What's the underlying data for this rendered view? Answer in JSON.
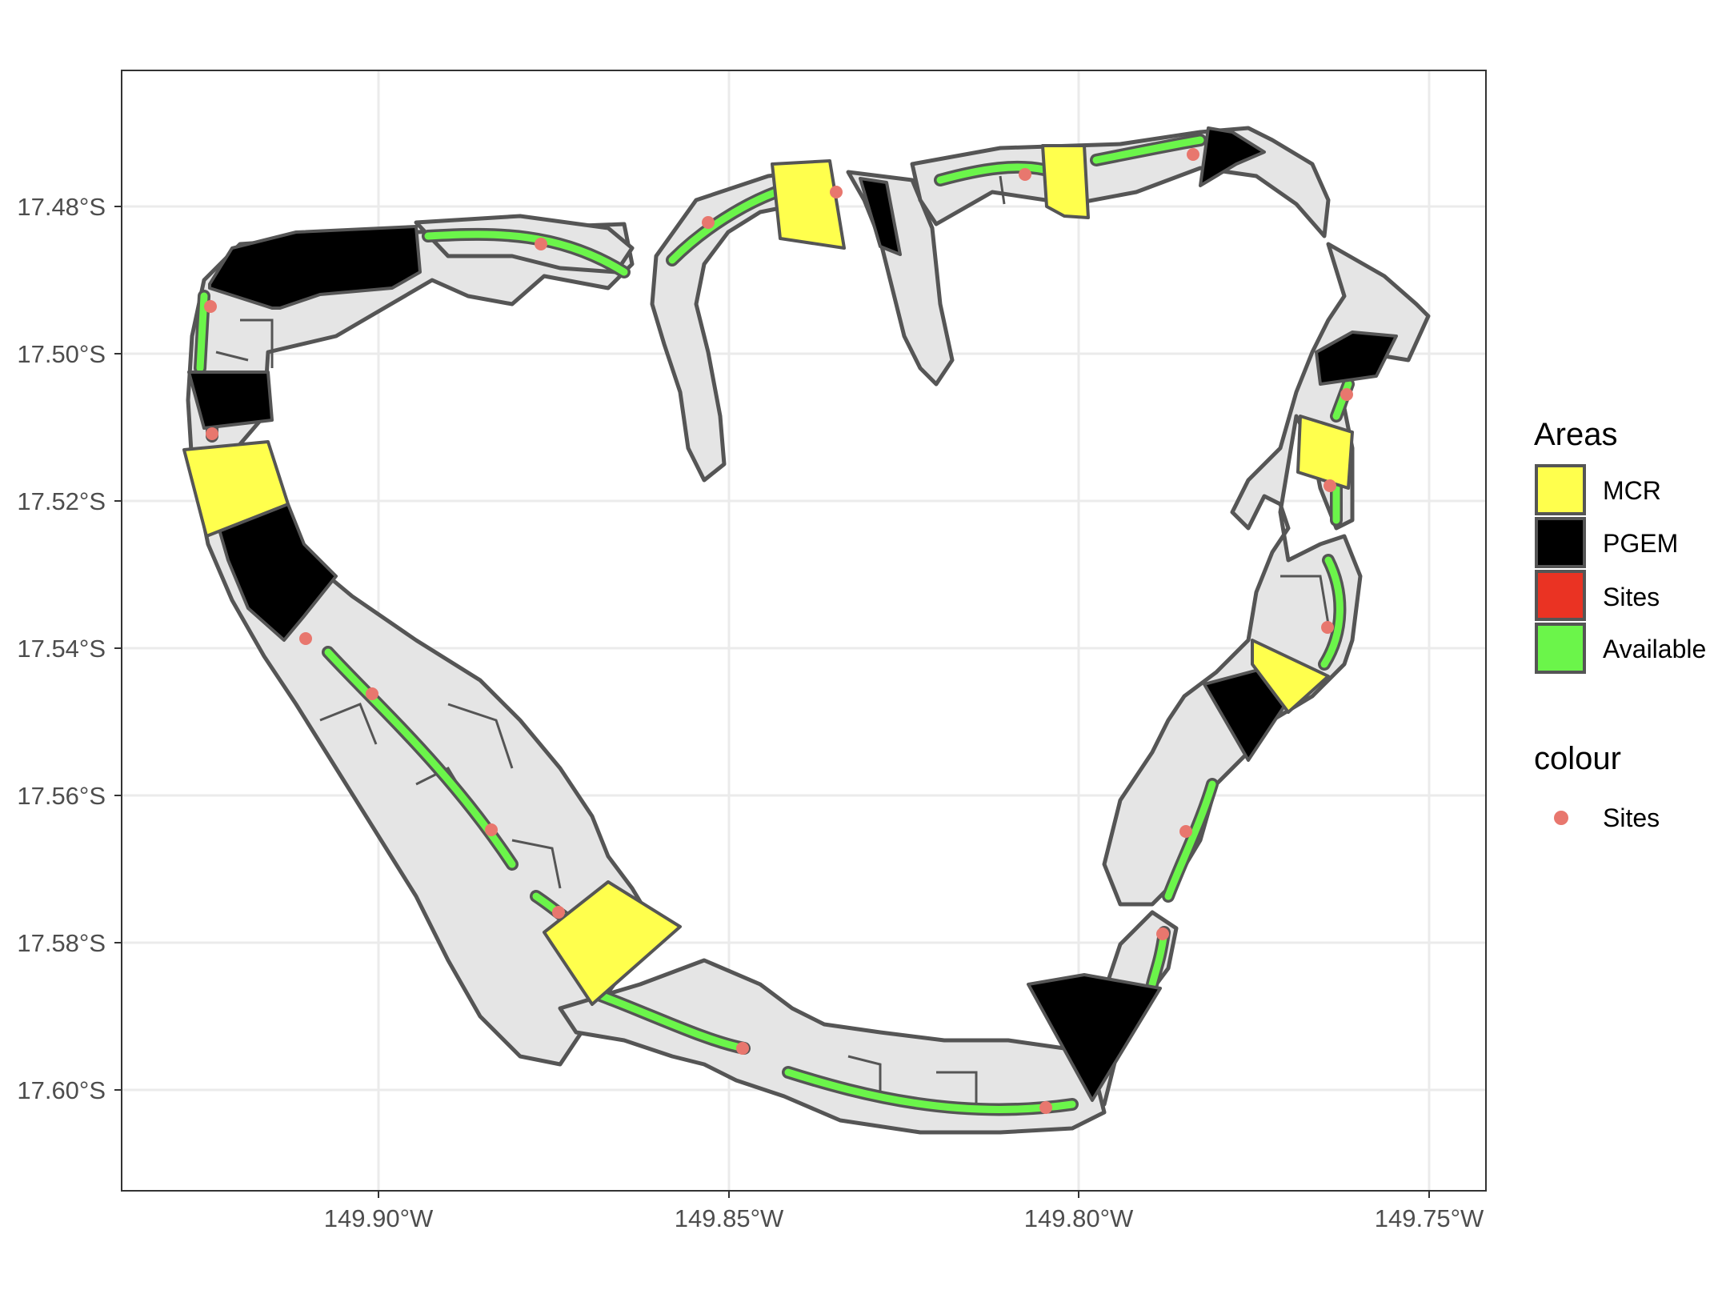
{
  "axes": {
    "y_ticks": [
      "17.48°S",
      "17.50°S",
      "17.52°S",
      "17.54°S",
      "17.56°S",
      "17.58°S",
      "17.60°S"
    ],
    "x_ticks": [
      "149.90°W",
      "149.85°W",
      "149.80°W",
      "149.75°W"
    ]
  },
  "legend": {
    "areas_title": "Areas",
    "areas": [
      {
        "label": "MCR",
        "color": "#ffff4d"
      },
      {
        "label": "PGEM",
        "color": "#000000"
      },
      {
        "label": "Sites",
        "color": "#ea3323"
      },
      {
        "label": "Available",
        "color": "#6bf54a"
      }
    ],
    "colour_title": "colour",
    "colour": [
      {
        "label": "Sites",
        "color": "#e8776e"
      }
    ]
  },
  "colors": {
    "reef_fill": "#e5e5e5",
    "outline": "#555555",
    "grid": "#ebebeb",
    "panel_border": "#333333",
    "site_point": "#e8776e",
    "available": "#6bf54a",
    "mcr": "#ffff4d",
    "pgem": "#000000"
  }
}
